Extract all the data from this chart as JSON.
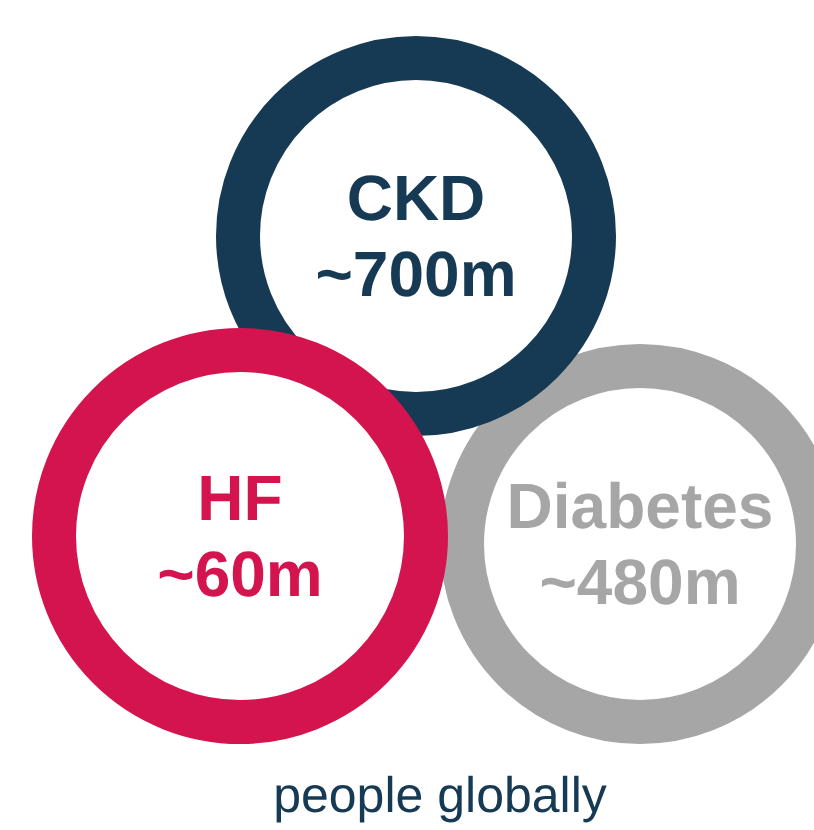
{
  "chart_data": {
    "type": "other",
    "categories": [
      "CKD",
      "HF",
      "Diabetes"
    ],
    "values": [
      700,
      60,
      480
    ],
    "value_labels": [
      "~700m",
      "~60m",
      "~480m"
    ],
    "colors": [
      "#173a54",
      "#d4144f",
      "#a6a6a6"
    ],
    "annotations": [
      "people globally"
    ]
  }
}
